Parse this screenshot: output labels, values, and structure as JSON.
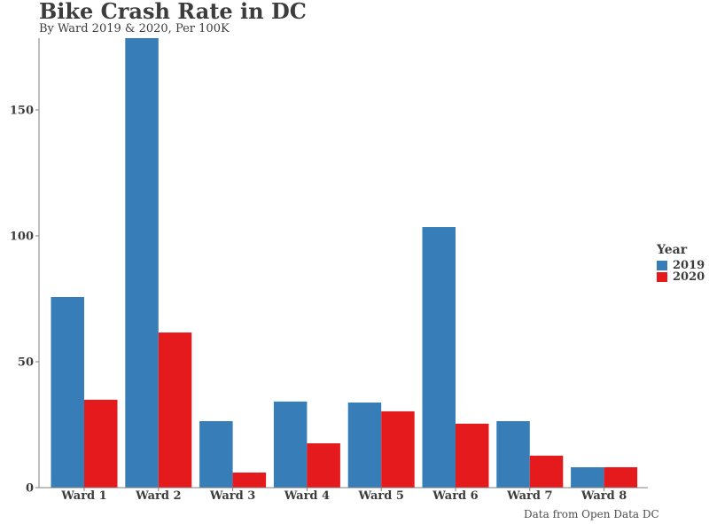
{
  "chart_data": {
    "type": "bar",
    "title": "Bike Crash Rate in DC",
    "subtitle": "By Ward 2019 & 2020, Per 100K",
    "caption": "Data from Open Data DC",
    "xlabel": "",
    "ylabel": "",
    "categories": [
      "Ward 1",
      "Ward 2",
      "Ward 3",
      "Ward 4",
      "Ward 5",
      "Ward 6",
      "Ward 7",
      "Ward 8"
    ],
    "series": [
      {
        "name": "2019",
        "color": "#377eb8",
        "values": [
          75.7,
          178.5,
          26.4,
          34.2,
          33.8,
          103.5,
          26.4,
          8.1
        ]
      },
      {
        "name": "2020",
        "color": "#e41a1c",
        "values": [
          34.9,
          61.6,
          6.0,
          17.6,
          30.3,
          25.4,
          12.7,
          8.1
        ]
      }
    ],
    "yticks": [
      0,
      50,
      100,
      150
    ],
    "ylim": [
      0,
      178.5
    ],
    "grid": false,
    "legend": {
      "title": "Year",
      "placement": "right"
    }
  }
}
